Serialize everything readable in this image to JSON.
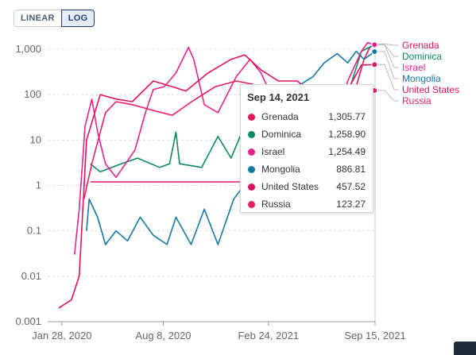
{
  "toolbar": {
    "linear_label": "LINEAR",
    "log_label": "LOG"
  },
  "tooltip": {
    "title": "Sep 14, 2021",
    "rows": [
      {
        "name": "Grenada",
        "value": "1,305.77",
        "color": "#e5165c"
      },
      {
        "name": "Dominica",
        "value": "1,258.90",
        "color": "#0a8a62"
      },
      {
        "name": "Israel",
        "value": "1,254.49",
        "color": "#e8238d"
      },
      {
        "name": "Mongolia",
        "value": "886.81",
        "color": "#1478a6"
      },
      {
        "name": "United States",
        "value": "457.52",
        "color": "#e0115f"
      },
      {
        "name": "Russia",
        "value": "123.27",
        "color": "#e8205e"
      }
    ]
  },
  "chart_data": {
    "type": "line",
    "y_scale": "log",
    "yticks": [
      0.001,
      0.01,
      0.1,
      1,
      10,
      100,
      1000
    ],
    "ytick_labels": [
      "0.001",
      "0.01",
      "0.1",
      "1",
      "10",
      "100",
      "1,000"
    ],
    "xticks": [
      "2020-01-28",
      "2020-08-08",
      "2021-02-24",
      "2021-09-15"
    ],
    "xtick_labels": [
      "Jan 28, 2020",
      "Aug 8, 2020",
      "Feb 24, 2021",
      "Sep 15, 2021"
    ],
    "x_range": [
      "2020-01-01",
      "2021-09-15"
    ],
    "ylim": [
      0.001,
      1500
    ],
    "legend": "right",
    "series": [
      {
        "name": "Grenada",
        "color": "#e5165c",
        "points": [
          [
            "2020-03-22",
            1.2
          ],
          [
            "2020-04-05",
            1.2
          ],
          [
            "2020-07-01",
            1.2
          ],
          [
            "2020-10-01",
            1.2
          ],
          [
            "2020-12-01",
            1.2
          ],
          [
            "2021-01-15",
            1.2
          ],
          [
            "2021-03-01",
            2.5
          ],
          [
            "2021-04-01",
            5
          ],
          [
            "2021-05-15",
            3
          ],
          [
            "2021-06-10",
            1.5
          ],
          [
            "2021-07-20",
            30
          ],
          [
            "2021-08-10",
            150
          ],
          [
            "2021-08-25",
            600
          ],
          [
            "2021-09-05",
            1100
          ],
          [
            "2021-09-14",
            1305.77
          ]
        ]
      },
      {
        "name": "Dominica",
        "color": "#0a8a62",
        "points": [
          [
            "2020-03-22",
            3
          ],
          [
            "2020-04-10",
            2
          ],
          [
            "2020-05-20",
            3
          ],
          [
            "2020-06-20",
            4
          ],
          [
            "2020-08-01",
            2.5
          ],
          [
            "2020-08-20",
            3
          ],
          [
            "2020-09-01",
            15
          ],
          [
            "2020-09-08",
            3
          ],
          [
            "2020-10-20",
            2.5
          ],
          [
            "2020-11-20",
            12
          ],
          [
            "2020-12-15",
            4
          ],
          [
            "2021-01-20",
            40
          ],
          [
            "2021-02-10",
            8
          ],
          [
            "2021-03-10",
            25
          ],
          [
            "2021-04-15",
            6
          ],
          [
            "2021-05-20",
            3
          ],
          [
            "2021-06-25",
            8
          ],
          [
            "2021-07-25",
            100
          ],
          [
            "2021-08-20",
            900
          ],
          [
            "2021-09-14",
            1258.9
          ]
        ]
      },
      {
        "name": "Israel",
        "color": "#e8238d",
        "points": [
          [
            "2020-02-21",
            0.03
          ],
          [
            "2020-03-01",
            0.3
          ],
          [
            "2020-03-12",
            20
          ],
          [
            "2020-03-25",
            80
          ],
          [
            "2020-04-05",
            15
          ],
          [
            "2020-04-20",
            3
          ],
          [
            "2020-05-10",
            1.5
          ],
          [
            "2020-06-15",
            6
          ],
          [
            "2020-07-05",
            40
          ],
          [
            "2020-07-20",
            130
          ],
          [
            "2020-08-10",
            150
          ],
          [
            "2020-09-01",
            300
          ],
          [
            "2020-09-25",
            1100
          ],
          [
            "2020-10-05",
            600
          ],
          [
            "2020-10-25",
            60
          ],
          [
            "2020-11-20",
            40
          ],
          [
            "2020-12-25",
            250
          ],
          [
            "2021-01-20",
            600
          ],
          [
            "2021-02-10",
            300
          ],
          [
            "2021-03-10",
            60
          ],
          [
            "2021-04-15",
            8
          ],
          [
            "2021-05-20",
            2
          ],
          [
            "2021-06-25",
            10
          ],
          [
            "2021-07-25",
            200
          ],
          [
            "2021-08-20",
            900
          ],
          [
            "2021-09-01",
            1400
          ],
          [
            "2021-09-14",
            1254.49
          ]
        ]
      },
      {
        "name": "Mongolia",
        "color": "#1478a6",
        "points": [
          [
            "2020-03-15",
            0.1
          ],
          [
            "2020-03-20",
            0.5
          ],
          [
            "2020-04-05",
            0.2
          ],
          [
            "2020-04-20",
            0.05
          ],
          [
            "2020-05-10",
            0.1
          ],
          [
            "2020-06-01",
            0.06
          ],
          [
            "2020-06-25",
            0.2
          ],
          [
            "2020-07-20",
            0.08
          ],
          [
            "2020-08-15",
            0.05
          ],
          [
            "2020-09-01",
            0.2
          ],
          [
            "2020-09-30",
            0.05
          ],
          [
            "2020-10-25",
            0.3
          ],
          [
            "2020-11-20",
            0.05
          ],
          [
            "2020-12-20",
            0.5
          ],
          [
            "2021-01-20",
            1.5
          ],
          [
            "2021-02-20",
            3
          ],
          [
            "2021-03-20",
            15
          ],
          [
            "2021-04-20",
            150
          ],
          [
            "2021-05-20",
            250
          ],
          [
            "2021-06-10",
            500
          ],
          [
            "2021-07-05",
            800
          ],
          [
            "2021-07-25",
            500
          ],
          [
            "2021-08-10",
            900
          ],
          [
            "2021-08-25",
            600
          ],
          [
            "2021-09-14",
            886.81
          ]
        ]
      },
      {
        "name": "United States",
        "color": "#e0115f",
        "points": [
          [
            "2020-01-22",
            0.002
          ],
          [
            "2020-02-15",
            0.003
          ],
          [
            "2020-03-01",
            0.01
          ],
          [
            "2020-03-15",
            10
          ],
          [
            "2020-04-10",
            100
          ],
          [
            "2020-05-10",
            80
          ],
          [
            "2020-06-10",
            70
          ],
          [
            "2020-07-20",
            200
          ],
          [
            "2020-08-25",
            150
          ],
          [
            "2020-09-20",
            120
          ],
          [
            "2020-11-01",
            300
          ],
          [
            "2020-12-15",
            600
          ],
          [
            "2021-01-10",
            750
          ],
          [
            "2021-02-10",
            350
          ],
          [
            "2021-03-15",
            200
          ],
          [
            "2021-04-20",
            200
          ],
          [
            "2021-05-20",
            100
          ],
          [
            "2021-06-20",
            40
          ],
          [
            "2021-07-20",
            100
          ],
          [
            "2021-08-20",
            450
          ],
          [
            "2021-09-14",
            457.52
          ]
        ]
      },
      {
        "name": "Russia",
        "color": "#e8205e",
        "points": [
          [
            "2020-03-10",
            0.5
          ],
          [
            "2020-03-25",
            3
          ],
          [
            "2020-04-20",
            40
          ],
          [
            "2020-05-10",
            70
          ],
          [
            "2020-06-10",
            60
          ],
          [
            "2020-07-20",
            45
          ],
          [
            "2020-08-25",
            35
          ],
          [
            "2020-10-01",
            70
          ],
          [
            "2020-11-15",
            150
          ],
          [
            "2020-12-25",
            200
          ],
          [
            "2021-01-25",
            170
          ],
          [
            "2021-03-01",
            85
          ],
          [
            "2021-04-15",
            60
          ],
          [
            "2021-05-25",
            60
          ],
          [
            "2021-07-10",
            160
          ],
          [
            "2021-08-10",
            140
          ],
          [
            "2021-09-14",
            123.27
          ]
        ]
      }
    ]
  }
}
